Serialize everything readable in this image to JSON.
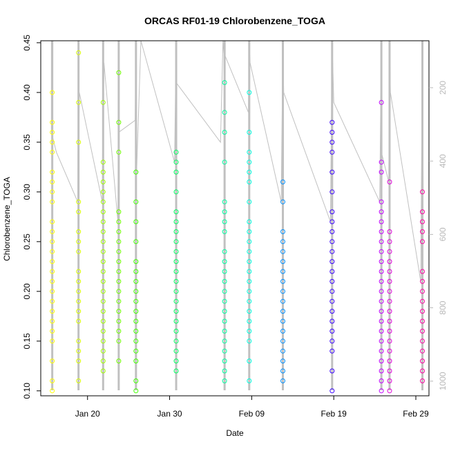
{
  "chart_data": {
    "type": "scatter",
    "title": "ORCAS RF01-19 Chlorobenzene_TOGA",
    "xlabel": "Date",
    "ylabel": "Chlorobenzene_TOGA",
    "x_ticks": [
      "Jan 20",
      "Jan 30",
      "Feb 09",
      "Feb 19",
      "Feb 29"
    ],
    "x_tick_days": [
      20,
      30,
      40,
      50,
      60
    ],
    "xlim_days": [
      14.3,
      61.6
    ],
    "y_ticks": [
      "0.10",
      "0.15",
      "0.20",
      "0.25",
      "0.30",
      "0.35",
      "0.40",
      "0.45"
    ],
    "ylim": [
      0.095,
      0.452
    ],
    "right_ticks": [
      "200",
      "400",
      "600",
      "800",
      "1000"
    ],
    "right_tick_values": [
      200,
      400,
      600,
      800,
      1000
    ],
    "right_lim": [
      72,
      1040
    ],
    "grid": false,
    "legend": "none",
    "overlay_color": "#c0c0c0",
    "flights": [
      {
        "day": 15.7,
        "color": "#ffff00",
        "values": [
          0.1,
          0.11,
          0.13,
          0.15,
          0.16,
          0.17,
          0.18,
          0.19,
          0.2,
          0.21,
          0.22,
          0.23,
          0.24,
          0.25,
          0.26,
          0.27,
          0.29,
          0.3,
          0.31,
          0.32,
          0.34,
          0.35,
          0.36,
          0.37,
          0.4
        ]
      },
      {
        "day": 18.9,
        "color": "#d8ff00",
        "values": [
          0.11,
          0.13,
          0.14,
          0.15,
          0.17,
          0.18,
          0.19,
          0.2,
          0.21,
          0.22,
          0.24,
          0.25,
          0.26,
          0.28,
          0.29,
          0.35,
          0.39,
          0.44
        ]
      },
      {
        "day": 21.9,
        "color": "#a0ff00",
        "values": [
          0.12,
          0.13,
          0.14,
          0.15,
          0.16,
          0.17,
          0.18,
          0.19,
          0.2,
          0.21,
          0.22,
          0.23,
          0.24,
          0.25,
          0.26,
          0.27,
          0.28,
          0.29,
          0.3,
          0.31,
          0.32,
          0.33,
          0.39
        ]
      },
      {
        "day": 23.8,
        "color": "#70ff00",
        "values": [
          0.13,
          0.15,
          0.16,
          0.17,
          0.18,
          0.19,
          0.2,
          0.21,
          0.22,
          0.23,
          0.24,
          0.25,
          0.26,
          0.27,
          0.28,
          0.34,
          0.37,
          0.42
        ]
      },
      {
        "day": 25.9,
        "color": "#40ff00",
        "values": [
          0.1,
          0.11,
          0.13,
          0.14,
          0.15,
          0.16,
          0.17,
          0.18,
          0.19,
          0.2,
          0.21,
          0.22,
          0.23,
          0.25,
          0.27,
          0.29,
          0.32
        ]
      },
      {
        "day": 30.8,
        "color": "#00ff60",
        "values": [
          0.12,
          0.13,
          0.14,
          0.15,
          0.16,
          0.17,
          0.18,
          0.19,
          0.2,
          0.21,
          0.22,
          0.23,
          0.24,
          0.25,
          0.26,
          0.27,
          0.28,
          0.3,
          0.32,
          0.33,
          0.34
        ]
      },
      {
        "day": 36.7,
        "color": "#00ffa0",
        "values": [
          0.11,
          0.12,
          0.13,
          0.14,
          0.15,
          0.16,
          0.17,
          0.18,
          0.19,
          0.2,
          0.21,
          0.22,
          0.23,
          0.24,
          0.26,
          0.27,
          0.28,
          0.29,
          0.33,
          0.36,
          0.38,
          0.41
        ]
      },
      {
        "day": 39.7,
        "color": "#00ffe0",
        "values": [
          0.11,
          0.13,
          0.15,
          0.16,
          0.17,
          0.18,
          0.19,
          0.2,
          0.21,
          0.22,
          0.23,
          0.24,
          0.25,
          0.26,
          0.27,
          0.29,
          0.31,
          0.32,
          0.33,
          0.34,
          0.36,
          0.4
        ]
      },
      {
        "day": 43.8,
        "color": "#0090ff",
        "values": [
          0.11,
          0.12,
          0.13,
          0.14,
          0.15,
          0.16,
          0.17,
          0.18,
          0.19,
          0.2,
          0.21,
          0.22,
          0.23,
          0.24,
          0.25,
          0.26,
          0.29,
          0.31
        ]
      },
      {
        "day": 49.8,
        "color": "#3800ff",
        "values": [
          0.1,
          0.12,
          0.14,
          0.15,
          0.16,
          0.17,
          0.18,
          0.19,
          0.2,
          0.21,
          0.22,
          0.23,
          0.24,
          0.25,
          0.26,
          0.27,
          0.28,
          0.3,
          0.32,
          0.34,
          0.35,
          0.36,
          0.37
        ]
      },
      {
        "day": 55.8,
        "color": "#c000ff",
        "values": [
          0.1,
          0.11,
          0.12,
          0.13,
          0.14,
          0.15,
          0.16,
          0.17,
          0.18,
          0.19,
          0.2,
          0.21,
          0.22,
          0.23,
          0.24,
          0.25,
          0.26,
          0.27,
          0.28,
          0.29,
          0.32,
          0.33,
          0.39
        ]
      },
      {
        "day": 56.8,
        "color": "#e000d8",
        "values": [
          0.1,
          0.11,
          0.12,
          0.13,
          0.14,
          0.15,
          0.16,
          0.17,
          0.18,
          0.19,
          0.2,
          0.21,
          0.22,
          0.23,
          0.24,
          0.25,
          0.26,
          0.31
        ]
      },
      {
        "day": 60.8,
        "color": "#ff00a0",
        "values": [
          0.11,
          0.12,
          0.13,
          0.14,
          0.15,
          0.16,
          0.17,
          0.18,
          0.19,
          0.2,
          0.21,
          0.22,
          0.25,
          0.26,
          0.27,
          0.28,
          0.3
        ]
      }
    ],
    "overlay_path": [
      [
        15.6,
        0.452
      ],
      [
        15.6,
        0.36
      ],
      [
        16.2,
        0.34
      ],
      [
        18.8,
        0.29
      ],
      [
        18.9,
        0.452
      ],
      [
        18.9,
        0.31
      ],
      [
        19.0,
        0.4
      ],
      [
        21.8,
        0.29
      ],
      [
        21.9,
        0.452
      ],
      [
        21.9,
        0.36
      ],
      [
        22.0,
        0.43
      ],
      [
        23.7,
        0.27
      ],
      [
        23.8,
        0.452
      ],
      [
        23.8,
        0.36
      ],
      [
        25.8,
        0.372
      ],
      [
        25.9,
        0.452
      ],
      [
        25.9,
        0.3
      ],
      [
        26.5,
        0.452
      ],
      [
        30.6,
        0.33
      ],
      [
        30.8,
        0.452
      ],
      [
        30.8,
        0.41
      ],
      [
        36.2,
        0.35
      ],
      [
        36.5,
        0.452
      ],
      [
        36.6,
        0.44
      ],
      [
        39.6,
        0.38
      ],
      [
        39.7,
        0.452
      ],
      [
        39.8,
        0.43
      ],
      [
        43.6,
        0.29
      ],
      [
        43.8,
        0.452
      ],
      [
        43.9,
        0.4
      ],
      [
        49.6,
        0.27
      ],
      [
        49.8,
        0.452
      ],
      [
        50.0,
        0.39
      ],
      [
        55.6,
        0.29
      ],
      [
        55.8,
        0.452
      ],
      [
        55.8,
        0.34
      ],
      [
        56.7,
        0.31
      ],
      [
        56.8,
        0.452
      ],
      [
        56.9,
        0.4
      ],
      [
        60.6,
        0.21
      ],
      [
        60.8,
        0.452
      ],
      [
        60.9,
        0.3
      ]
    ]
  }
}
